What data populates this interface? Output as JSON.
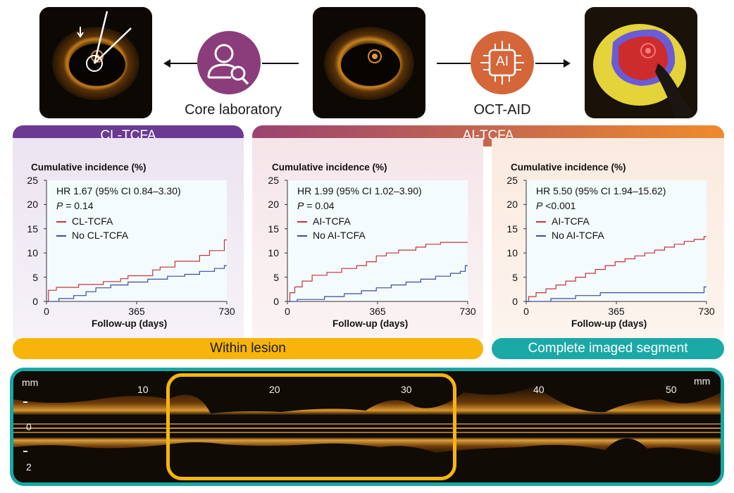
{
  "top": {
    "core_lab_caption": "Core laboratory",
    "octaid_caption": "OCT-AID",
    "ai_chip_text": "AI",
    "colors": {
      "core_lab_icon": "#8b3c7a",
      "octaid_icon": "#d4663a"
    }
  },
  "banners": {
    "cl_tcfa": "CL-TCFA",
    "ai_tcfa": "AI-TCFA",
    "within_lesion": "Within lesion",
    "complete_segment": "Complete imaged segment",
    "colors": {
      "cl": "#6b3a93",
      "ai_start": "#9b4372",
      "ai_end": "#ef8a2c",
      "within": "#f7b40b",
      "complete": "#1aa9a6"
    }
  },
  "chart_data": [
    {
      "type": "line",
      "ylabel": "Cumulative incidence (%)",
      "xlabel": "Follow-up (days)",
      "x_ticks": [
        0,
        365,
        730
      ],
      "y_ticks": [
        0,
        5,
        10,
        15,
        20,
        25
      ],
      "xlim": [
        0,
        730
      ],
      "ylim": [
        0,
        25
      ],
      "annotations": [
        "HR 1.67 (95% CI 0.84–3.30)",
        "P",
        " = 0.14"
      ],
      "series": [
        {
          "name": "CL-TCFA",
          "color": "#c8323c",
          "x": [
            0,
            8,
            8,
            40,
            40,
            130,
            130,
            230,
            230,
            300,
            300,
            330,
            330,
            430,
            430,
            460,
            460,
            520,
            520,
            620,
            620,
            660,
            660,
            720,
            720,
            730
          ],
          "y": [
            0,
            0,
            2.3,
            2.3,
            2.9,
            2.9,
            3.5,
            3.5,
            4.1,
            4.1,
            4.7,
            4.7,
            5.3,
            5.3,
            6.5,
            6.5,
            7.1,
            7.1,
            8.3,
            8.3,
            9.5,
            9.5,
            10.5,
            10.5,
            12.7,
            12.7
          ]
        },
        {
          "name": "No CL-TCFA",
          "color": "#3b4c9c",
          "x": [
            0,
            50,
            50,
            110,
            110,
            160,
            160,
            200,
            200,
            260,
            260,
            330,
            330,
            410,
            410,
            490,
            490,
            560,
            560,
            620,
            620,
            680,
            680,
            720,
            720,
            730
          ],
          "y": [
            0,
            0,
            0.6,
            0.6,
            1.2,
            1.2,
            2.0,
            2.0,
            2.8,
            2.8,
            3.4,
            3.4,
            4.0,
            4.0,
            4.6,
            4.6,
            5.2,
            5.2,
            5.6,
            5.6,
            6.2,
            6.2,
            6.8,
            6.8,
            7.4,
            7.4
          ]
        }
      ]
    },
    {
      "type": "line",
      "ylabel": "Cumulative incidence (%)",
      "xlabel": "Follow-up (days)",
      "x_ticks": [
        0,
        365,
        730
      ],
      "y_ticks": [
        0,
        5,
        10,
        15,
        20,
        25
      ],
      "xlim": [
        0,
        730
      ],
      "ylim": [
        0,
        25
      ],
      "annotations": [
        "HR 1.99 (95% CI 1.02–3.90)",
        "P",
        " = 0.04"
      ],
      "series": [
        {
          "name": "AI-TCFA",
          "color": "#c8323c",
          "x": [
            0,
            10,
            10,
            30,
            30,
            60,
            60,
            100,
            100,
            160,
            160,
            220,
            220,
            280,
            280,
            320,
            320,
            360,
            360,
            400,
            400,
            450,
            450,
            520,
            520,
            560,
            560,
            620,
            620,
            730
          ],
          "y": [
            0,
            0,
            1.8,
            1.8,
            3.0,
            3.0,
            4.2,
            4.2,
            5.4,
            5.4,
            6.0,
            6.0,
            6.8,
            6.8,
            7.4,
            7.4,
            8.2,
            8.2,
            9.4,
            9.4,
            10.0,
            10.0,
            10.6,
            10.6,
            11.2,
            11.2,
            11.8,
            11.8,
            12.2,
            12.2
          ]
        },
        {
          "name": "No AI-TCFA",
          "color": "#3b4c9c",
          "x": [
            0,
            40,
            40,
            150,
            150,
            230,
            230,
            300,
            300,
            360,
            360,
            420,
            420,
            480,
            480,
            540,
            540,
            600,
            600,
            660,
            660,
            700,
            700,
            720,
            720,
            730
          ],
          "y": [
            0,
            0,
            0.4,
            0.4,
            1.0,
            1.0,
            1.6,
            1.6,
            2.2,
            2.2,
            2.8,
            2.8,
            3.4,
            3.4,
            4.0,
            4.0,
            4.6,
            4.6,
            5.2,
            5.2,
            5.8,
            5.8,
            6.2,
            6.2,
            7.4,
            7.4
          ]
        }
      ]
    },
    {
      "type": "line",
      "ylabel": "Cumulative incidence (%)",
      "xlabel": "Follow-up (days)",
      "x_ticks": [
        0,
        365,
        730
      ],
      "y_ticks": [
        0,
        5,
        10,
        15,
        20,
        25
      ],
      "xlim": [
        0,
        730
      ],
      "ylim": [
        0,
        25
      ],
      "annotations": [
        "HR 5.50 (95% CI 1.94–15.62)",
        "P",
        " <0.001"
      ],
      "series": [
        {
          "name": "AI-TCFA",
          "color": "#c8323c",
          "x": [
            0,
            10,
            10,
            40,
            40,
            80,
            80,
            120,
            120,
            160,
            160,
            200,
            200,
            240,
            240,
            280,
            280,
            320,
            320,
            360,
            360,
            400,
            400,
            440,
            440,
            480,
            480,
            520,
            520,
            560,
            560,
            600,
            600,
            640,
            640,
            680,
            680,
            720,
            720,
            730
          ],
          "y": [
            0,
            0,
            1.0,
            1.0,
            1.8,
            1.8,
            2.6,
            2.6,
            3.4,
            3.4,
            4.2,
            4.2,
            5.0,
            5.0,
            5.8,
            5.8,
            6.6,
            6.6,
            7.4,
            7.4,
            8.2,
            8.2,
            8.8,
            8.8,
            9.4,
            9.4,
            10.0,
            10.0,
            10.6,
            10.6,
            11.2,
            11.2,
            11.8,
            11.8,
            12.4,
            12.4,
            12.8,
            12.8,
            13.4,
            13.4
          ]
        },
        {
          "name": "No AI-TCFA",
          "color": "#3b4c9c",
          "x": [
            0,
            100,
            100,
            200,
            200,
            300,
            300,
            720,
            720,
            730
          ],
          "y": [
            0,
            0,
            0.6,
            0.6,
            1.2,
            1.2,
            1.8,
            1.8,
            3.0,
            3.0
          ]
        }
      ]
    }
  ],
  "longview": {
    "left_unit": "mm",
    "right_unit": "mm",
    "x_ticks": [
      "10",
      "20",
      "30",
      "40",
      "50"
    ],
    "y_ticks": [
      "0",
      "2"
    ]
  }
}
